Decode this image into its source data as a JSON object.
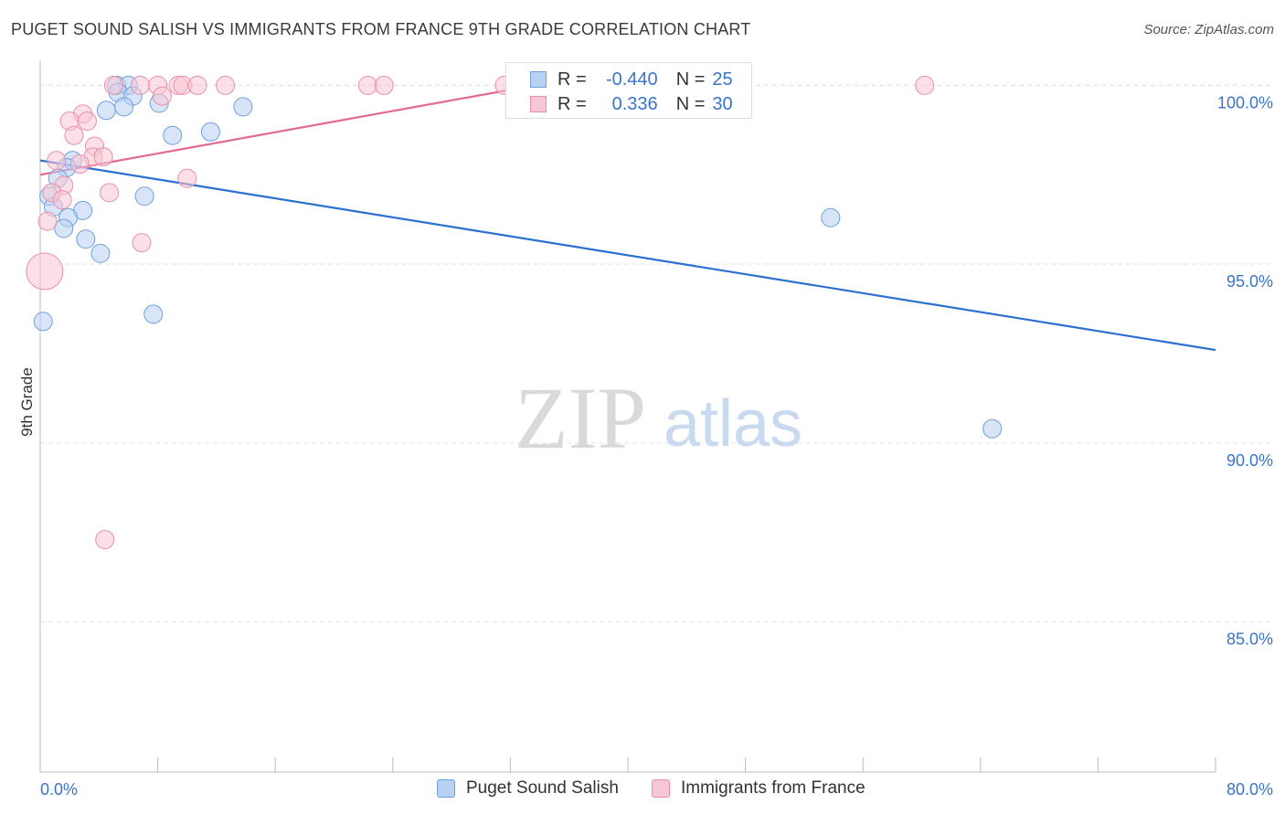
{
  "title": "PUGET SOUND SALISH VS IMMIGRANTS FROM FRANCE 9TH GRADE CORRELATION CHART",
  "source": "Source: ZipAtlas.com",
  "watermark": {
    "zip": "ZIP",
    "atlas": "atlas"
  },
  "legend": {
    "rows": [
      {
        "r_label": "R =",
        "r_value": "-0.440",
        "n_label": "N =",
        "n_value": "25"
      },
      {
        "r_label": "R =",
        "r_value": "0.336",
        "n_label": "N =",
        "n_value": "30"
      }
    ]
  },
  "colors": {
    "blue_fill": "#b8d0f2",
    "blue_stroke": "#6f9fdc",
    "blue_line": "#2b6fd1",
    "pink_fill": "#f8c6d4",
    "pink_stroke": "#e98fab",
    "pink_line": "#e46a92",
    "tick_label": "#3a74c9",
    "grid": "#e2e2e2"
  },
  "chart_data": {
    "type": "scatter",
    "title": "PUGET SOUND SALISH VS IMMIGRANTS FROM FRANCE 9TH GRADE CORRELATION CHART",
    "xlabel": "",
    "ylabel": "9th Grade",
    "xlim": [
      0,
      80
    ],
    "ylim": [
      80.8,
      100.7
    ],
    "x_tick_labels": [
      "0.0%",
      "80.0%"
    ],
    "y_ticks": [
      85,
      90,
      95,
      100
    ],
    "y_tick_labels": [
      "85.0%",
      "90.0%",
      "95.0%",
      "100.0%"
    ],
    "grid": true,
    "legend_position": "bottom",
    "series": [
      {
        "name": "Puget Sound Salish",
        "color": "blue",
        "points": [
          [
            5.2,
            100.0
          ],
          [
            6.0,
            100.0
          ],
          [
            5.3,
            99.8
          ],
          [
            6.3,
            99.7
          ],
          [
            8.1,
            99.5
          ],
          [
            5.7,
            99.4
          ],
          [
            13.8,
            99.4
          ],
          [
            4.5,
            99.3
          ],
          [
            11.6,
            98.7
          ],
          [
            9.0,
            98.6
          ],
          [
            2.2,
            97.9
          ],
          [
            1.8,
            97.7
          ],
          [
            1.2,
            97.4
          ],
          [
            0.6,
            96.9
          ],
          [
            7.1,
            96.9
          ],
          [
            0.9,
            96.6
          ],
          [
            2.9,
            96.5
          ],
          [
            1.9,
            96.3
          ],
          [
            53.8,
            96.3
          ],
          [
            1.6,
            96.0
          ],
          [
            3.1,
            95.7
          ],
          [
            4.1,
            95.3
          ],
          [
            7.7,
            93.6
          ],
          [
            0.2,
            93.4
          ],
          [
            64.8,
            90.4
          ]
        ],
        "sizes": [
          10,
          10,
          10,
          10,
          10,
          10,
          10,
          10,
          10,
          10,
          10,
          10,
          10,
          10,
          10,
          10,
          10,
          10,
          10,
          10,
          10,
          10,
          10,
          10,
          10
        ],
        "trend": {
          "x": [
            0,
            80
          ],
          "y": [
            97.9,
            92.6
          ]
        }
      },
      {
        "name": "Immigrants from France",
        "color": "pink",
        "points": [
          [
            5.0,
            100.0
          ],
          [
            6.8,
            100.0
          ],
          [
            8.0,
            100.0
          ],
          [
            9.4,
            100.0
          ],
          [
            9.7,
            100.0
          ],
          [
            10.7,
            100.0
          ],
          [
            12.6,
            100.0
          ],
          [
            22.3,
            100.0
          ],
          [
            23.4,
            100.0
          ],
          [
            31.6,
            100.0
          ],
          [
            60.2,
            100.0
          ],
          [
            8.3,
            99.7
          ],
          [
            2.9,
            99.2
          ],
          [
            2.0,
            99.0
          ],
          [
            3.2,
            99.0
          ],
          [
            2.3,
            98.6
          ],
          [
            3.7,
            98.3
          ],
          [
            1.1,
            97.9
          ],
          [
            3.6,
            98.0
          ],
          [
            4.3,
            98.0
          ],
          [
            2.7,
            97.8
          ],
          [
            10.0,
            97.4
          ],
          [
            1.6,
            97.2
          ],
          [
            0.8,
            97.0
          ],
          [
            4.7,
            97.0
          ],
          [
            1.5,
            96.8
          ],
          [
            0.5,
            96.2
          ],
          [
            6.9,
            95.6
          ],
          [
            0.3,
            94.8
          ],
          [
            4.4,
            87.3
          ]
        ],
        "sizes": [
          10,
          10,
          10,
          10,
          10,
          10,
          10,
          10,
          10,
          10,
          10,
          10,
          10,
          10,
          10,
          10,
          10,
          10,
          10,
          10,
          10,
          10,
          10,
          10,
          10,
          10,
          10,
          10,
          20,
          10
        ],
        "trend": {
          "x": [
            0,
            35
          ],
          "y": [
            97.5,
            100.1
          ]
        }
      }
    ]
  },
  "bottom_legend": {
    "series_a": "Puget Sound Salish",
    "series_b": "Immigrants from France"
  }
}
